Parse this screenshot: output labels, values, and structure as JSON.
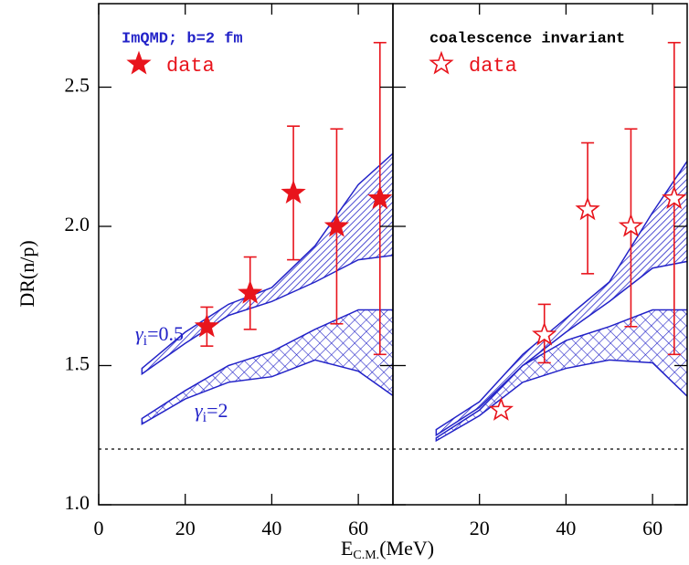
{
  "chart_data": [
    {
      "type": "scatter",
      "note": "ImQMD; b=2 fm",
      "note_color": "#2323c8",
      "y_label": "DR(n/p)",
      "x_label": {
        "main": "E",
        "sub": "C.M.",
        "tail": "(MeV)"
      },
      "xlim": [
        0,
        68
      ],
      "ylim": [
        1.0,
        2.8
      ],
      "xticks": [
        0,
        20,
        40,
        60
      ],
      "yticks": [
        {
          "value": 1,
          "label": "1.0"
        },
        1.5,
        {
          "value": 2,
          "label": "2.0"
        },
        2.5
      ],
      "reference_line": 1.2,
      "series": [
        {
          "name": "data",
          "color": "#e8141c",
          "marker_fill": true,
          "x": [
            25,
            35,
            45,
            55,
            65
          ],
          "values": [
            1.64,
            1.76,
            2.12,
            2.0,
            2.1
          ],
          "lower": [
            1.57,
            1.63,
            1.88,
            1.65,
            1.54
          ],
          "upper": [
            1.71,
            1.89,
            2.36,
            2.35,
            2.66
          ]
        }
      ],
      "bands": [
        {
          "color": "#2323c8",
          "hatch": "diagonal",
          "label": {
            "symbol": "γ",
            "sub": "i",
            "tail": "=0.5"
          },
          "x": [
            10,
            20,
            30,
            40,
            50,
            60,
            70
          ],
          "lower": [
            1.47,
            1.58,
            1.68,
            1.73,
            1.8,
            1.88,
            1.9
          ],
          "upper": [
            1.49,
            1.62,
            1.72,
            1.78,
            1.93,
            2.15,
            2.29
          ]
        },
        {
          "color": "#2323c8",
          "hatch": "cross",
          "label": {
            "symbol": "γ",
            "sub": "i",
            "tail": "=2"
          },
          "x": [
            10,
            20,
            30,
            40,
            50,
            60,
            70
          ],
          "lower": [
            1.29,
            1.38,
            1.44,
            1.46,
            1.52,
            1.48,
            1.37
          ],
          "upper": [
            1.31,
            1.41,
            1.5,
            1.55,
            1.63,
            1.7,
            1.7
          ]
        }
      ]
    },
    {
      "type": "scatter",
      "note": "coalescence invariant",
      "note_color": "#000000",
      "xlim": [
        0,
        68
      ],
      "ylim": [
        1.0,
        2.8
      ],
      "xticks": [
        20,
        40,
        60
      ],
      "reference_line": 1.2,
      "series": [
        {
          "name": "data",
          "color": "#e8141c",
          "marker_fill": false,
          "x": [
            25,
            35,
            45,
            55,
            65
          ],
          "values": [
            1.34,
            1.61,
            2.06,
            2.0,
            2.1
          ],
          "lower": [
            null,
            1.51,
            1.83,
            1.64,
            1.54
          ],
          "upper": [
            null,
            1.72,
            2.3,
            2.35,
            2.66
          ]
        }
      ],
      "bands": [
        {
          "color": "#2323c8",
          "hatch": "diagonal",
          "x": [
            10,
            20,
            30,
            40,
            50,
            60,
            70
          ],
          "lower": [
            1.25,
            1.35,
            1.5,
            1.62,
            1.73,
            1.85,
            1.88
          ],
          "upper": [
            1.27,
            1.37,
            1.54,
            1.67,
            1.8,
            2.05,
            2.28
          ]
        },
        {
          "color": "#2323c8",
          "hatch": "cross",
          "x": [
            10,
            20,
            30,
            40,
            50,
            60,
            70
          ],
          "lower": [
            1.23,
            1.32,
            1.44,
            1.49,
            1.52,
            1.51,
            1.36
          ],
          "upper": [
            1.24,
            1.34,
            1.5,
            1.59,
            1.64,
            1.7,
            1.7
          ]
        }
      ]
    }
  ]
}
